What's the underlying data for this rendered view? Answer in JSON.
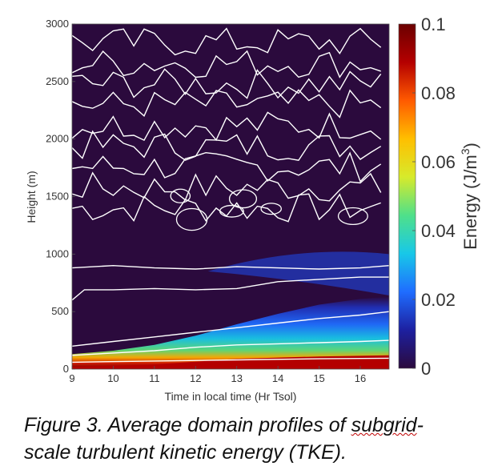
{
  "chart_data": {
    "type": "heatmap",
    "xlabel": "Time in local time (Hr Tsol)",
    "ylabel": "Height (m)",
    "xlim": [
      9,
      16.7
    ],
    "ylim": [
      0,
      3000
    ],
    "x_ticks": [
      "9",
      "10",
      "11",
      "12",
      "13",
      "14",
      "15",
      "16"
    ],
    "y_ticks": [
      "0",
      "500",
      "1000",
      "1500",
      "2000",
      "2500",
      "3000"
    ],
    "colorbar": {
      "label": "Energy  (J/m",
      "label_sup": "3",
      "label_end": ")",
      "range": [
        0,
        0.1
      ],
      "ticks": [
        "0",
        "0.02",
        "0.04",
        "0.06",
        "0.08",
        "0.1"
      ],
      "colormap": [
        "#2b0a3d",
        "#1d20a0",
        "#1f6dff",
        "#18c8e8",
        "#4fe08a",
        "#d7ea2b",
        "#ffbf00",
        "#ff5a00",
        "#b40000",
        "#6b0000"
      ]
    },
    "colors": {
      "background": "#2b0a3d",
      "contour": "#ffffff"
    },
    "mixed_layer_top_m": [
      {
        "t": 9.0,
        "h": 130
      },
      {
        "t": 10.0,
        "h": 160
      },
      {
        "t": 11.0,
        "h": 210
      },
      {
        "t": 12.0,
        "h": 290
      },
      {
        "t": 13.0,
        "h": 390
      },
      {
        "t": 14.0,
        "h": 480
      },
      {
        "t": 15.0,
        "h": 560
      },
      {
        "t": 16.0,
        "h": 610
      },
      {
        "t": 16.7,
        "h": 630
      }
    ],
    "high_energy_layer_top_m": [
      {
        "t": 9.0,
        "h": 20
      },
      {
        "t": 11.0,
        "h": 40
      },
      {
        "t": 13.0,
        "h": 90
      },
      {
        "t": 15.0,
        "h": 110
      },
      {
        "t": 16.7,
        "h": 120
      }
    ]
  },
  "caption": {
    "line1_before": "Figure 3. Average domain profiles of ",
    "line1_flagged": "subgrid",
    "line1_after": "-",
    "line2": "scale turbulent kinetic energy (TKE)."
  }
}
